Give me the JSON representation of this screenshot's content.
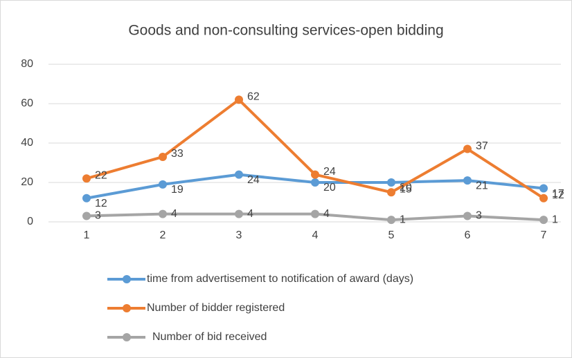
{
  "chart_data": {
    "type": "line",
    "title": "Goods and non-consulting services-open bidding",
    "categories": [
      "1",
      "2",
      "3",
      "4",
      "5",
      "6",
      "7"
    ],
    "series": [
      {
        "name": "time from advertisement to notification of award (days)",
        "color": "#5b9bd5",
        "values": [
          12,
          19,
          24,
          20,
          20,
          21,
          17
        ]
      },
      {
        "name": "Number of bidder registered",
        "color": "#ed7d31",
        "values": [
          22,
          33,
          62,
          24,
          15,
          37,
          12
        ]
      },
      {
        "name": "Number of bid received",
        "color": "#a5a5a5",
        "values": [
          3,
          4,
          4,
          4,
          1,
          3,
          1
        ]
      }
    ],
    "ylim": [
      0,
      80
    ],
    "yticks": [
      0,
      20,
      40,
      60,
      80
    ],
    "grid": true,
    "data_labels": true,
    "legend": "bottom"
  }
}
